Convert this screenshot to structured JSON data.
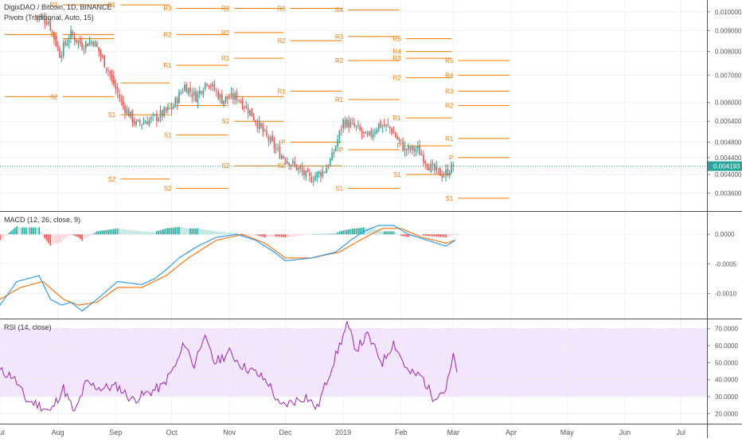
{
  "header": {
    "title": "DigixDAO / Bitcoin, 1D, BINANCE",
    "pivots_label": "Pivots (Traditional, Auto, 15)"
  },
  "colors": {
    "up": "#26a69a",
    "down": "#ef5350",
    "pivot": "#f57c00",
    "macd_line": "#2196f3",
    "signal_line": "#ff6d00",
    "hist_pos_strong": "#26a69a",
    "hist_pos_weak": "#b2dfdb",
    "hist_neg_strong": "#ef5350",
    "hist_neg_weak": "#ffcdd2",
    "rsi_line": "#9c27b0",
    "rsi_band": "#f3e5fb",
    "grid": "#eef0f3",
    "price_badge": "#26a69a"
  },
  "chart_data": [
    {
      "type": "candlestick",
      "title": "DigixDAO / Bitcoin, 1D, BINANCE",
      "overlay": "Pivots (Traditional, Auto, 15)",
      "y_scale": "log",
      "ylim": [
        0.0033,
        0.0105
      ],
      "y_ticks": [
        "0.010000",
        "0.009000",
        "0.008000",
        "0.007000",
        "0.006000",
        "0.005400",
        "0.004800",
        "0.004400",
        "0.004000",
        "0.003600"
      ],
      "last_price": "0.004193",
      "x_ticks": [
        "Jul",
        "Aug",
        "Sep",
        "Oct",
        "Nov",
        "Dec",
        "2019",
        "Feb",
        "Mar",
        "Apr",
        "May",
        "Jun",
        "Jul"
      ],
      "close_anchors": [
        [
          "2018-07-20",
          0.0098
        ],
        [
          "2018-07-27",
          0.0095
        ],
        [
          "2018-08-02",
          0.0079
        ],
        [
          "2018-08-08",
          0.0088
        ],
        [
          "2018-08-14",
          0.0083
        ],
        [
          "2018-08-20",
          0.0085
        ],
        [
          "2018-08-28",
          0.0072
        ],
        [
          "2018-09-04",
          0.006
        ],
        [
          "2018-09-12",
          0.0053
        ],
        [
          "2018-09-22",
          0.0055
        ],
        [
          "2018-10-01",
          0.0058
        ],
        [
          "2018-10-08",
          0.0066
        ],
        [
          "2018-10-14",
          0.0062
        ],
        [
          "2018-10-20",
          0.0068
        ],
        [
          "2018-10-28",
          0.0061
        ],
        [
          "2018-11-05",
          0.0062
        ],
        [
          "2018-11-12",
          0.0057
        ],
        [
          "2018-11-20",
          0.005
        ],
        [
          "2018-11-28",
          0.0045
        ],
        [
          "2018-12-06",
          0.0042
        ],
        [
          "2018-12-14",
          0.0039
        ],
        [
          "2018-12-22",
          0.0041
        ],
        [
          "2018-12-26",
          0.0044
        ],
        [
          "2019-01-01",
          0.0054
        ],
        [
          "2019-01-08",
          0.0052
        ],
        [
          "2019-01-14",
          0.0049
        ],
        [
          "2019-01-20",
          0.0053
        ],
        [
          "2019-01-26",
          0.0052
        ],
        [
          "2019-02-03",
          0.0046
        ],
        [
          "2019-02-10",
          0.0046
        ],
        [
          "2019-02-18",
          0.0041
        ],
        [
          "2019-02-24",
          0.004
        ],
        [
          "2019-03-01",
          0.0042
        ]
      ],
      "pivot_segments": [
        {
          "period": "2018-07",
          "levels": {
            "S2": 0.0062,
            "S1": 0.0088,
            "P": null,
            "R1": null,
            "R2": null,
            "R3": null,
            "R4": null,
            "R5": null
          }
        },
        {
          "period": "2018-08",
          "levels": {
            "S2": 0.0062,
            "S1": 0.0088,
            "P": 0.0086,
            "R1": 0.0104,
            "R2": null,
            "R3": null,
            "R4": null,
            "R5": null
          }
        },
        {
          "period": "2018-09",
          "levels": {
            "S2": 0.0039,
            "S1": 0.0056,
            "P": 0.0067,
            "R1": 0.0104,
            "R2": null,
            "R3": null,
            "R4": null,
            "R5": null
          }
        },
        {
          "period": "2018-10",
          "levels": {
            "S2": 0.0037,
            "S1": 0.005,
            "P": 0.0059,
            "R1": 0.0074,
            "R2": 0.0088,
            "R3": 0.0102,
            "R4": null,
            "R5": null
          }
        },
        {
          "period": "2018-11",
          "levels": {
            "S2": 0.0042,
            "S1": 0.0054,
            "P": 0.0062,
            "R1": 0.0077,
            "R2": 0.0089,
            "R3": 0.0102,
            "R4": null,
            "R5": null
          }
        },
        {
          "period": "2018-12",
          "levels": {
            "S2": 0.0042,
            "S1": null,
            "P": 0.0048,
            "R1": 0.0064,
            "R2": 0.0085,
            "R3": 0.0102,
            "R4": null,
            "R5": null
          }
        },
        {
          "period": "2019-01",
          "levels": {
            "S2": null,
            "S1": 0.0037,
            "P": 0.0046,
            "R1": 0.0061,
            "R2": 0.0076,
            "R3": 0.0087,
            "R4": 0.0101,
            "R5": null
          }
        },
        {
          "period": "2019-02",
          "levels": {
            "S2": null,
            "S1": 0.004,
            "P": 0.0047,
            "R1": 0.0055,
            "R2": 0.0069,
            "R3": 0.0077,
            "R4": 0.008,
            "R5": 0.0086
          }
        },
        {
          "period": "2019-03",
          "levels": {
            "S2": null,
            "S1": 0.0035,
            "P": 0.0044,
            "R1": 0.0049,
            "R2": 0.0059,
            "R3": 0.0064,
            "R4": 0.007,
            "R5": 0.0076
          }
        }
      ]
    },
    {
      "type": "line",
      "title": "MACD (12, 26, close, 9)",
      "ylim": [
        -0.0014,
        0.0003
      ],
      "y_ticks": [
        "0.0000",
        "-0.0005",
        "-0.0010"
      ],
      "series": [
        {
          "name": "MACD",
          "points": [
            [
              "2018-07-01",
              -0.0012
            ],
            [
              "2018-07-10",
              -0.0008
            ],
            [
              "2018-07-22",
              -0.0007
            ],
            [
              "2018-07-28",
              -0.0011
            ],
            [
              "2018-08-03",
              -0.0012
            ],
            [
              "2018-08-08",
              -0.00115
            ],
            [
              "2018-08-14",
              -0.0013
            ],
            [
              "2018-08-22",
              -0.0011
            ],
            [
              "2018-09-02",
              -0.0008
            ],
            [
              "2018-09-15",
              -0.00085
            ],
            [
              "2018-09-22",
              -0.00075
            ],
            [
              "2018-09-28",
              -0.0006
            ],
            [
              "2018-10-05",
              -0.0004
            ],
            [
              "2018-10-15",
              -0.0002
            ],
            [
              "2018-10-25",
              -5e-05
            ],
            [
              "2018-11-05",
              0.0
            ],
            [
              "2018-11-15",
              -0.0001
            ],
            [
              "2018-11-25",
              -0.0003
            ],
            [
              "2018-12-01",
              -0.00045
            ],
            [
              "2018-12-15",
              -0.0004
            ],
            [
              "2018-12-28",
              -0.0003
            ],
            [
              "2019-01-05",
              -0.0001
            ],
            [
              "2019-01-12",
              5e-05
            ],
            [
              "2019-01-20",
              0.00015
            ],
            [
              "2019-01-28",
              0.00015
            ],
            [
              "2019-02-05",
              0.0
            ],
            [
              "2019-02-15",
              -0.0001
            ],
            [
              "2019-02-25",
              -0.0002
            ],
            [
              "2019-03-02",
              -0.0001
            ]
          ]
        },
        {
          "name": "Signal",
          "points": [
            [
              "2018-07-01",
              -0.0011
            ],
            [
              "2018-07-12",
              -0.0009
            ],
            [
              "2018-07-24",
              -0.0008
            ],
            [
              "2018-08-04",
              -0.0011
            ],
            [
              "2018-08-12",
              -0.0012
            ],
            [
              "2018-08-22",
              -0.00115
            ],
            [
              "2018-09-02",
              -0.0009
            ],
            [
              "2018-09-15",
              -0.0009
            ],
            [
              "2018-09-28",
              -0.0007
            ],
            [
              "2018-10-10",
              -0.0004
            ],
            [
              "2018-10-25",
              -0.0001
            ],
            [
              "2018-11-08",
              0.0
            ],
            [
              "2018-11-20",
              -0.00015
            ],
            [
              "2018-12-01",
              -0.0004
            ],
            [
              "2018-12-15",
              -0.0004
            ],
            [
              "2018-12-30",
              -0.0003
            ],
            [
              "2019-01-10",
              -0.0001
            ],
            [
              "2019-01-22",
              0.0001
            ],
            [
              "2019-02-01",
              0.0001
            ],
            [
              "2019-02-12",
              -5e-05
            ],
            [
              "2019-02-25",
              -0.00015
            ],
            [
              "2019-03-02",
              -0.0001
            ]
          ]
        }
      ]
    },
    {
      "type": "line",
      "title": "RSI (14, close)",
      "ylim": [
        15,
        75
      ],
      "band": [
        30,
        70
      ],
      "y_ticks": [
        "70.0000",
        "60.0000",
        "50.0000",
        "40.0000",
        "30.0000",
        "20.0000"
      ],
      "series": [
        {
          "name": "RSI",
          "points": [
            [
              "2018-07-01",
              45
            ],
            [
              "2018-07-08",
              42
            ],
            [
              "2018-07-15",
              28
            ],
            [
              "2018-07-22",
              25
            ],
            [
              "2018-07-28",
              21
            ],
            [
              "2018-08-04",
              35
            ],
            [
              "2018-08-10",
              20
            ],
            [
              "2018-08-16",
              38
            ],
            [
              "2018-08-24",
              35
            ],
            [
              "2018-09-02",
              36
            ],
            [
              "2018-09-10",
              28
            ],
            [
              "2018-09-18",
              32
            ],
            [
              "2018-09-26",
              36
            ],
            [
              "2018-10-04",
              50
            ],
            [
              "2018-10-08",
              62
            ],
            [
              "2018-10-13",
              48
            ],
            [
              "2018-10-18",
              66
            ],
            [
              "2018-10-24",
              50
            ],
            [
              "2018-11-01",
              56
            ],
            [
              "2018-11-08",
              48
            ],
            [
              "2018-11-15",
              44
            ],
            [
              "2018-11-22",
              38
            ],
            [
              "2018-11-28",
              24
            ],
            [
              "2018-12-05",
              27
            ],
            [
              "2018-12-12",
              30
            ],
            [
              "2018-12-18",
              23
            ],
            [
              "2018-12-24",
              42
            ],
            [
              "2018-12-30",
              60
            ],
            [
              "2019-01-03",
              72
            ],
            [
              "2019-01-08",
              58
            ],
            [
              "2019-01-14",
              66
            ],
            [
              "2019-01-22",
              50
            ],
            [
              "2019-01-28",
              62
            ],
            [
              "2019-02-05",
              44
            ],
            [
              "2019-02-12",
              42
            ],
            [
              "2019-02-18",
              30
            ],
            [
              "2019-02-25",
              34
            ],
            [
              "2019-03-01",
              53
            ],
            [
              "2019-03-03",
              46
            ]
          ]
        }
      ]
    }
  ]
}
